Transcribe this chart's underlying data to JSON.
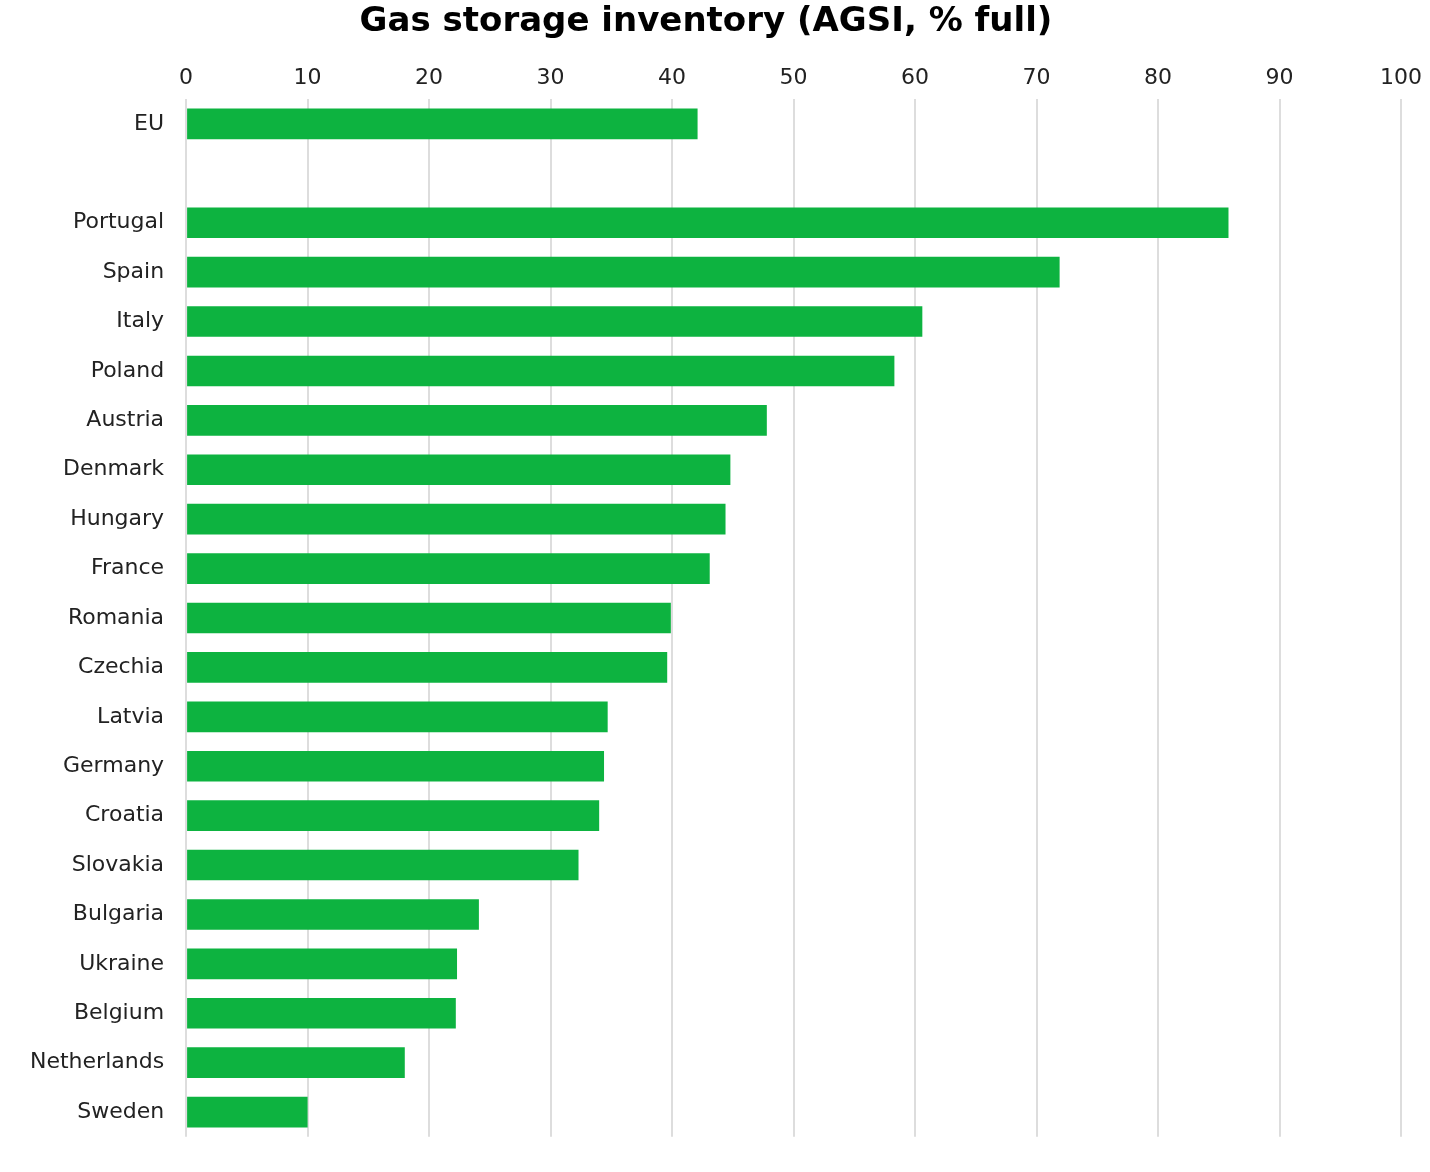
{
  "chart_data": {
    "type": "bar",
    "orientation": "horizontal",
    "title": "Gas storage inventory (AGSI, % full)",
    "categories": [
      "EU",
      null,
      "Portugal",
      "Spain",
      "Italy",
      "Poland",
      "Austria",
      "Denmark",
      "Hungary",
      "France",
      "Romania",
      "Czechia",
      "Latvia",
      "Germany",
      "Croatia",
      "Slovakia",
      "Bulgaria",
      "Ukraine",
      "Belgium",
      "Netherlands",
      "Sweden"
    ],
    "values": [
      42.1,
      null,
      85.8,
      71.9,
      60.6,
      58.3,
      47.8,
      44.8,
      44.4,
      43.1,
      39.9,
      39.6,
      34.7,
      34.4,
      34.0,
      32.3,
      24.1,
      22.3,
      22.2,
      18.0,
      10.0
    ],
    "color": "#0db340",
    "xlim": [
      0,
      100
    ],
    "xticks": [
      0,
      10,
      20,
      30,
      40,
      50,
      60,
      70,
      80,
      90,
      100
    ],
    "grid": "x",
    "legend": false
  }
}
